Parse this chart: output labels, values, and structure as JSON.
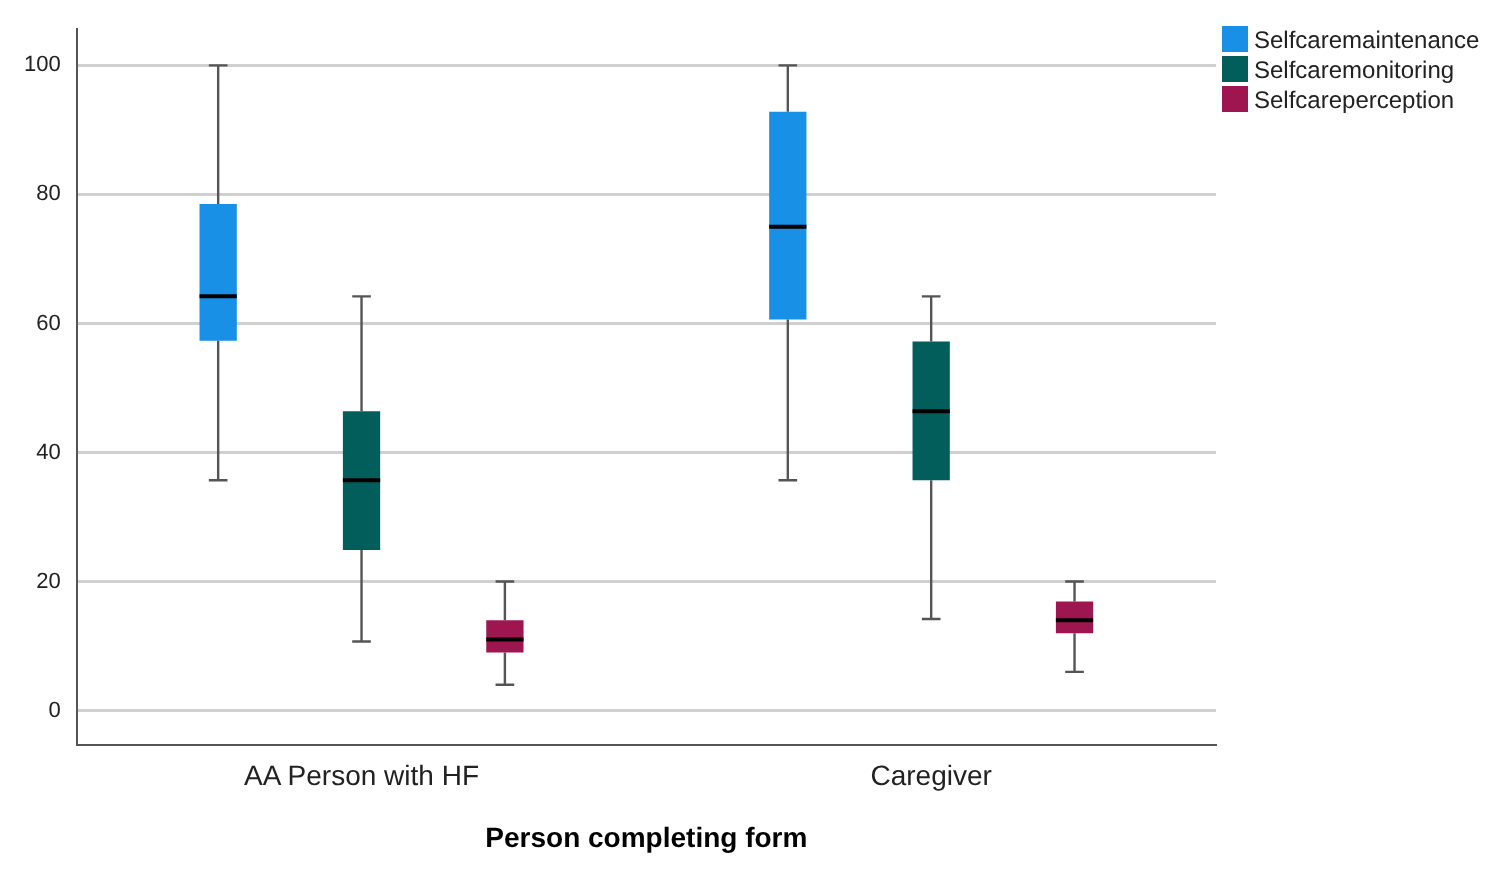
{
  "chart_data": {
    "type": "box",
    "xlabel": "Person completing form",
    "categories": [
      "AA Person with HF",
      "Caregiver"
    ],
    "ylim": [
      -5.3,
      105.6
    ],
    "yticks": [
      0,
      20,
      40,
      60,
      80,
      100
    ],
    "grid": "y",
    "legend": "top right",
    "series": [
      {
        "name": "Selfcaremaintenance",
        "color": "#1790e6",
        "boxes": [
          {
            "low": 35.7,
            "q1": 57.3,
            "median": 64.2,
            "q3": 78.5,
            "high": 100
          },
          {
            "low": 35.7,
            "q1": 60.6,
            "median": 75.0,
            "q3": 92.8,
            "high": 100
          }
        ]
      },
      {
        "name": "Selfcaremonitoring",
        "color": "#015e5b",
        "boxes": [
          {
            "low": 10.7,
            "q1": 24.9,
            "median": 35.7,
            "q3": 46.4,
            "high": 64.2
          },
          {
            "low": 14.2,
            "q1": 35.7,
            "median": 46.4,
            "q3": 57.2,
            "high": 64.2
          }
        ]
      },
      {
        "name": "Selfcareperception",
        "color": "#9e1650",
        "boxes": [
          {
            "low": 4.0,
            "q1": 9.0,
            "median": 11.0,
            "q3": 14.0,
            "high": 20
          },
          {
            "low": 6.0,
            "q1": 12.0,
            "median": 14.0,
            "q3": 16.9,
            "high": 20
          }
        ]
      }
    ]
  }
}
